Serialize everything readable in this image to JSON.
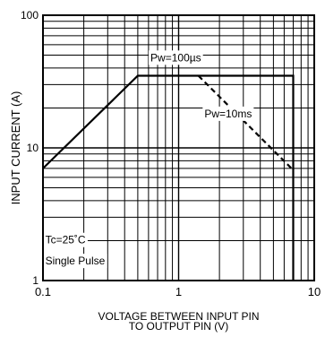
{
  "chart_data": {
    "type": "line",
    "title": "",
    "x_scale": "log",
    "y_scale": "log",
    "xlim": [
      0.1,
      10
    ],
    "ylim": [
      1,
      100
    ],
    "grid": true,
    "xlabel_lines": [
      "VOLTAGE BETWEEN INPUT PIN",
      "TO OUTPUT PIN (V)"
    ],
    "ylabel": "INPUT CURRENT (A)",
    "x_ticks": [
      {
        "value": 0.1,
        "label": "0.1"
      },
      {
        "value": 1,
        "label": "1"
      },
      {
        "value": 10,
        "label": "10"
      }
    ],
    "y_ticks": [
      {
        "value": 1,
        "label": "1"
      },
      {
        "value": 10,
        "label": "10"
      },
      {
        "value": 100,
        "label": "100"
      }
    ],
    "series": [
      {
        "name": "Pw=100µs",
        "style": "solid",
        "color": "#000000",
        "points": [
          [
            0.1,
            7
          ],
          [
            0.5,
            35
          ],
          [
            7,
            35
          ],
          [
            7,
            1
          ]
        ]
      },
      {
        "name": "Pw=10ms",
        "style": "dashed",
        "color": "#000000",
        "points": [
          [
            1.4,
            35
          ],
          [
            6.8,
            7
          ]
        ]
      }
    ],
    "annotations": [
      {
        "text": "Pw=100µs",
        "x": 0.62,
        "y": 45,
        "anchor": "start",
        "boxed": true
      },
      {
        "text": "Pw=10ms",
        "x": 1.55,
        "y": 17,
        "anchor": "start",
        "boxed": true
      },
      {
        "text": "Tc=25˚C",
        "x": 0.104,
        "y": 1.9,
        "anchor": "start",
        "boxed": false
      },
      {
        "text": "Single Pulse",
        "x": 0.104,
        "y": 1.32,
        "anchor": "start",
        "boxed": false
      }
    ]
  }
}
